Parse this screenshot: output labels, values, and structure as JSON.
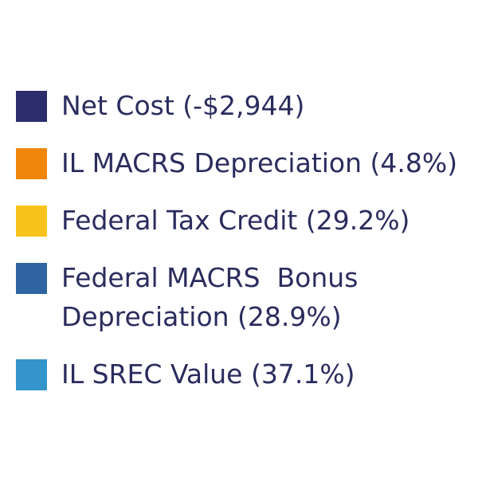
{
  "chart_data": {
    "type": "pie",
    "legend": [
      {
        "label": "Net Cost (-$2,944)",
        "color": "#2b2d6b"
      },
      {
        "label": "IL MACRS Depreciation (4.8%)",
        "color": "#f0860c"
      },
      {
        "label": "Federal Tax Credit (29.2%)",
        "color": "#f8c31c"
      },
      {
        "label": "Federal MACRS  Bonus Depreciation (28.9%)",
        "color": "#2f64a2"
      },
      {
        "label": "IL SREC Value (37.1%)",
        "color": "#3395c9"
      }
    ],
    "slices": [
      {
        "name": "Net Cost",
        "value": -2944
      },
      {
        "name": "IL MACRS Depreciation",
        "value": 4.8
      },
      {
        "name": "Federal Tax Credit",
        "value": 29.2
      },
      {
        "name": "Federal MACRS  Bonus Depreciation",
        "value": 28.9
      },
      {
        "name": "IL SREC Value",
        "value": 37.1
      }
    ],
    "legend_position": "center-left",
    "text_color": "#2a2c5e"
  }
}
